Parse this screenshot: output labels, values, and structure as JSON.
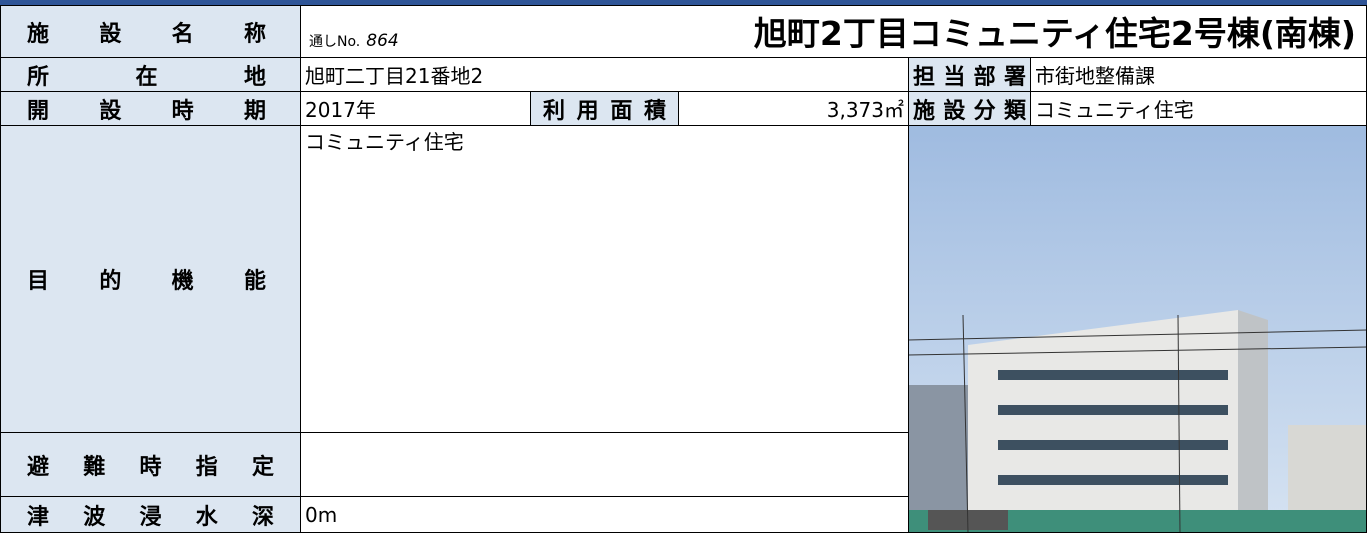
{
  "facility": {
    "name_label": "施設名称",
    "number_label": "通しNo.",
    "number": "864",
    "name": "旭町2丁目コミュニティ住宅2号棟(南棟)"
  },
  "location": {
    "label": "所在地",
    "value": "旭町二丁目21番地2"
  },
  "department": {
    "label": "担当部署",
    "value": "市街地整備課"
  },
  "opened": {
    "label": "開設時期",
    "value": "2017年"
  },
  "area": {
    "label": "利用面積",
    "value": "3,373㎡"
  },
  "category": {
    "label": "施設分類",
    "value": "コミュニティ住宅"
  },
  "purpose": {
    "label": "目的機能",
    "value": "コミュニティ住宅"
  },
  "evacuation": {
    "label": "避難時指定"
  },
  "tsunami": {
    "label": "津波浸水深",
    "value": "0m"
  }
}
